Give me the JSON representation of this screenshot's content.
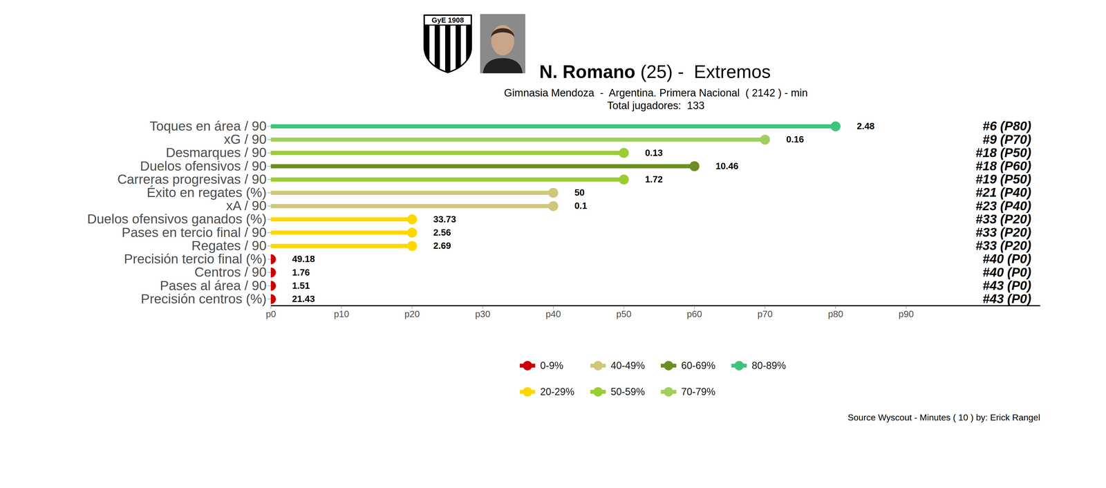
{
  "chart_data": {
    "type": "lollipop",
    "orientation": "horizontal",
    "title_parts": [
      "N. Romano",
      " (25) -  Extremos"
    ],
    "subtitle": [
      "Gimnasia Mendoza  -  Argentina. Primera Nacional  ( 2142 ) - min",
      "Total jugadores:  133"
    ],
    "logo_text": "GyE 1908",
    "categories": [
      "Toques en área / 90",
      "xG / 90",
      "Desmarques / 90",
      "Duelos ofensivos / 90",
      "Carreras progresivas / 90",
      "Éxito en regates (%)",
      "xA / 90",
      "Duelos ofensivos ganados (%)",
      "Pases en tercio final / 90",
      "Regates / 90",
      "Precisión tercio final (%)",
      "Centros / 90",
      "Pases al área / 90",
      "Precisión centros (%)"
    ],
    "values": [
      80,
      70,
      50,
      60,
      50,
      40,
      40,
      20,
      20,
      20,
      0,
      0,
      0,
      0
    ],
    "colors": [
      "#3fc47e",
      "#a1cf5c",
      "#9acd32",
      "#6b8e23",
      "#9acd32",
      "#cfc87a",
      "#cfc87a",
      "#ffd700",
      "#ffd700",
      "#ffd700",
      "#cc0000",
      "#cc0000",
      "#cc0000",
      "#cc0000"
    ],
    "metric_values": [
      2.48,
      0.16,
      0.13,
      10.46,
      1.72,
      50,
      0.1,
      33.73,
      2.56,
      2.69,
      49.18,
      1.76,
      1.51,
      21.43
    ],
    "rank_labels": [
      "#6 (P80)",
      "#9 (P70)",
      "#18 (P50)",
      "#18 (P60)",
      "#19 (P50)",
      "#21 (P40)",
      "#23 (P40)",
      "#33 (P20)",
      "#33 (P20)",
      "#33 (P20)",
      "#40 (P0)",
      "#40 (P0)",
      "#43 (P0)",
      "#43 (P0)"
    ],
    "xlim": [
      0,
      109
    ],
    "xticks": [
      {
        "value": 0,
        "label": "p0"
      },
      {
        "value": 10,
        "label": "p10"
      },
      {
        "value": 20,
        "label": "p20"
      },
      {
        "value": 30,
        "label": "p30"
      },
      {
        "value": 40,
        "label": "p40"
      },
      {
        "value": 50,
        "label": "p50"
      },
      {
        "value": 60,
        "label": "p60"
      },
      {
        "value": 70,
        "label": "p70"
      },
      {
        "value": 80,
        "label": "p80"
      },
      {
        "value": 90,
        "label": "p90"
      }
    ],
    "grid": false,
    "legend": "bottom",
    "color_bins": [
      {
        "name": "0-9%",
        "color": "#cc0000"
      },
      {
        "name": "20-29%",
        "color": "#ffd700"
      },
      {
        "name": "40-49%",
        "color": "#cfc87a"
      },
      {
        "name": "50-59%",
        "color": "#9acd32"
      },
      {
        "name": "60-69%",
        "color": "#6b8e23"
      },
      {
        "name": "70-79%",
        "color": "#a1cf5c"
      },
      {
        "name": "80-89%",
        "color": "#3fc47e"
      }
    ],
    "caption": "Source Wyscout - Minutes ( 10 ) by: Erick Rangel"
  }
}
